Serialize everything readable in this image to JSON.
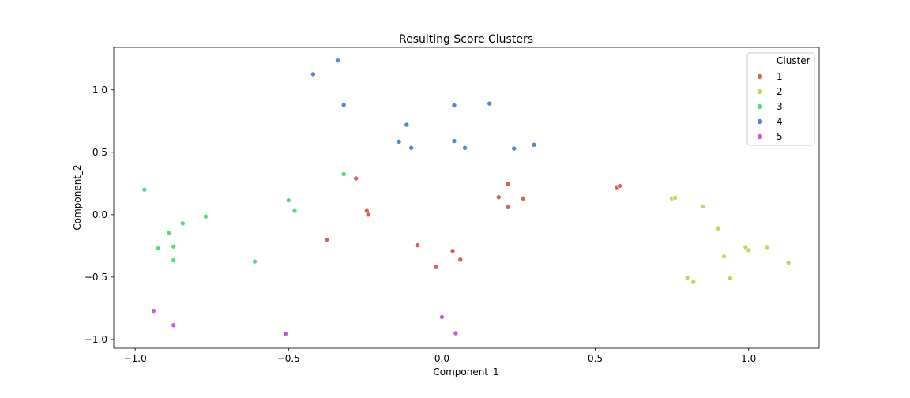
{
  "chart_data": {
    "type": "scatter",
    "title": "Resulting Score Clusters",
    "xlabel": "Component_1",
    "ylabel": "Component_2",
    "xlim": [
      -1.07,
      1.23
    ],
    "ylim": [
      -1.07,
      1.34
    ],
    "xticks": [
      -1.0,
      -0.5,
      0.0,
      0.5,
      1.0
    ],
    "xtick_labels": [
      "−1.0",
      "−0.5",
      "0.0",
      "0.5",
      "1.0"
    ],
    "yticks": [
      -1.0,
      -0.5,
      0.0,
      0.5,
      1.0
    ],
    "ytick_labels": [
      "−1.0",
      "−0.5",
      "0.0",
      "0.5",
      "1.0"
    ],
    "grid": false,
    "legend": {
      "title": "Cluster",
      "placement": "top-right"
    },
    "series": [
      {
        "name": "1",
        "color": "#db5f57",
        "points": [
          [
            -0.28,
            0.29
          ],
          [
            -0.245,
            0.03
          ],
          [
            -0.24,
            0.0
          ],
          [
            -0.375,
            -0.2
          ],
          [
            -0.08,
            -0.245
          ],
          [
            -0.02,
            -0.42
          ],
          [
            0.035,
            -0.29
          ],
          [
            0.06,
            -0.36
          ],
          [
            0.185,
            0.14
          ],
          [
            0.215,
            0.245
          ],
          [
            0.215,
            0.06
          ],
          [
            0.265,
            0.13
          ],
          [
            0.57,
            0.22
          ],
          [
            0.58,
            0.23
          ]
        ]
      },
      {
        "name": "2",
        "color": "#b9db57",
        "points": [
          [
            0.75,
            0.13
          ],
          [
            0.76,
            0.135
          ],
          [
            0.85,
            0.065
          ],
          [
            0.9,
            -0.11
          ],
          [
            0.92,
            -0.335
          ],
          [
            0.94,
            -0.51
          ],
          [
            0.99,
            -0.26
          ],
          [
            1.0,
            -0.285
          ],
          [
            1.06,
            -0.26
          ],
          [
            1.13,
            -0.385
          ],
          [
            0.8,
            -0.505
          ],
          [
            0.82,
            -0.54
          ]
        ]
      },
      {
        "name": "3",
        "color": "#57db80",
        "points": [
          [
            -0.97,
            0.2
          ],
          [
            -0.5,
            0.115
          ],
          [
            -0.48,
            0.03
          ],
          [
            -0.32,
            0.325
          ],
          [
            -0.77,
            -0.015
          ],
          [
            -0.845,
            -0.07
          ],
          [
            -0.89,
            -0.145
          ],
          [
            -0.925,
            -0.27
          ],
          [
            -0.875,
            -0.255
          ],
          [
            -0.875,
            -0.365
          ],
          [
            -0.61,
            -0.375
          ]
        ]
      },
      {
        "name": "4",
        "color": "#5784db",
        "points": [
          [
            -0.42,
            1.125
          ],
          [
            -0.34,
            1.235
          ],
          [
            -0.32,
            0.88
          ],
          [
            -0.115,
            0.72
          ],
          [
            -0.14,
            0.585
          ],
          [
            -0.1,
            0.535
          ],
          [
            0.04,
            0.875
          ],
          [
            0.04,
            0.59
          ],
          [
            0.075,
            0.535
          ],
          [
            0.155,
            0.89
          ],
          [
            0.235,
            0.53
          ],
          [
            0.3,
            0.56
          ]
        ]
      },
      {
        "name": "5",
        "color": "#c957db",
        "points": [
          [
            -0.94,
            -0.77
          ],
          [
            -0.875,
            -0.885
          ],
          [
            -0.51,
            -0.955
          ],
          [
            0.0,
            -0.82
          ],
          [
            0.045,
            -0.95
          ]
        ]
      }
    ]
  }
}
